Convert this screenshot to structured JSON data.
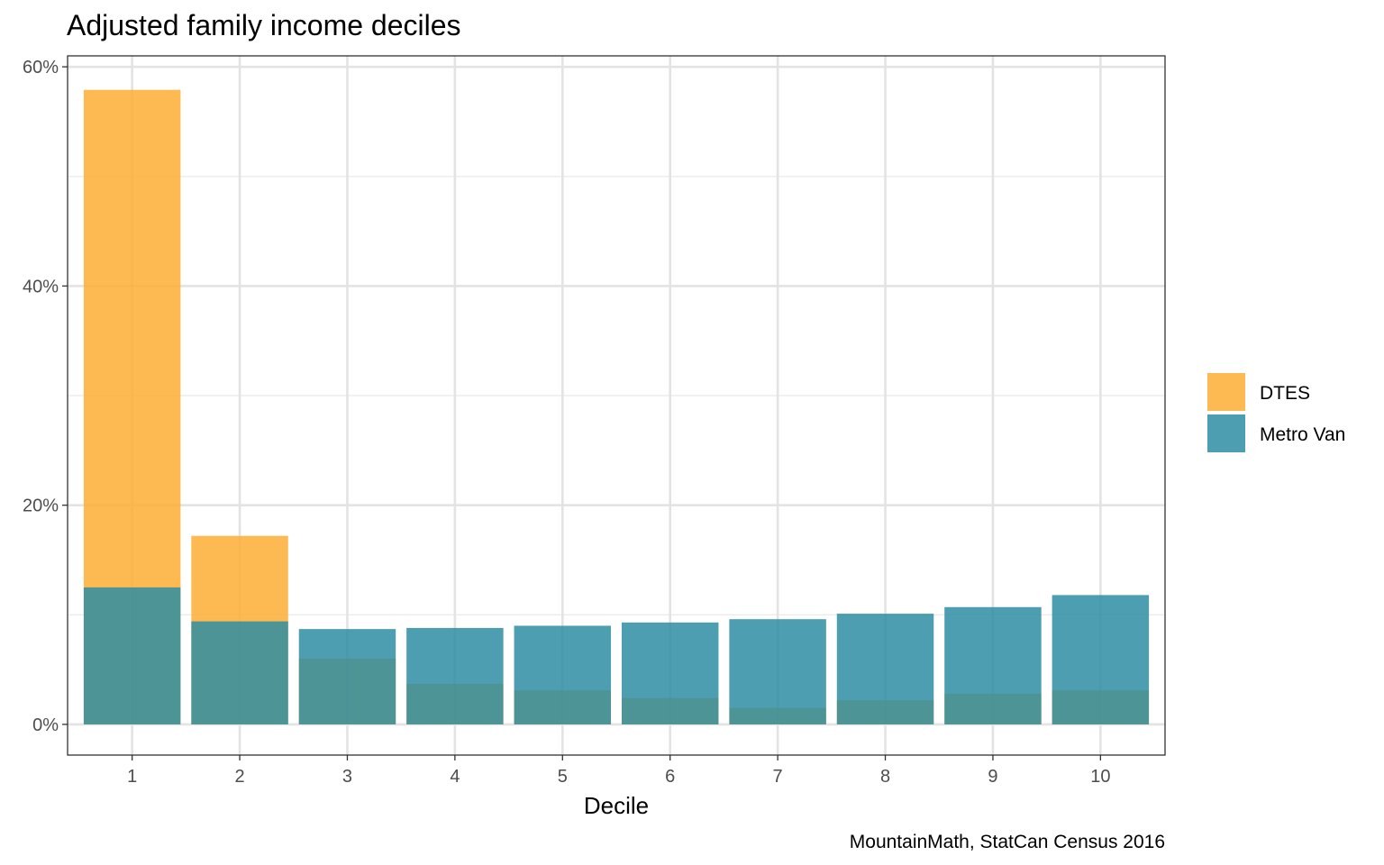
{
  "chart_data": {
    "type": "bar",
    "title": "Adjusted family income deciles",
    "xlabel": "Decile",
    "ylabel": "",
    "caption": "MountainMath, StatCan Census 2016",
    "categories": [
      "1",
      "2",
      "3",
      "4",
      "5",
      "6",
      "7",
      "8",
      "9",
      "10"
    ],
    "ylim": [
      -2.8,
      61
    ],
    "yticks": [
      0,
      20,
      40,
      60
    ],
    "ytick_labels": [
      "0%",
      "20%",
      "40%",
      "60%"
    ],
    "grid": true,
    "legend_position": "right",
    "series": [
      {
        "name": "DTES",
        "color": "#FDAE35",
        "values": [
          57.9,
          17.2,
          6.0,
          3.7,
          3.1,
          2.4,
          1.5,
          2.2,
          2.8,
          3.1
        ]
      },
      {
        "name": "Metro Van",
        "color": "#2E8DA3",
        "values": [
          12.5,
          9.4,
          8.7,
          8.8,
          9.0,
          9.3,
          9.6,
          10.1,
          10.7,
          11.8
        ]
      }
    ]
  }
}
